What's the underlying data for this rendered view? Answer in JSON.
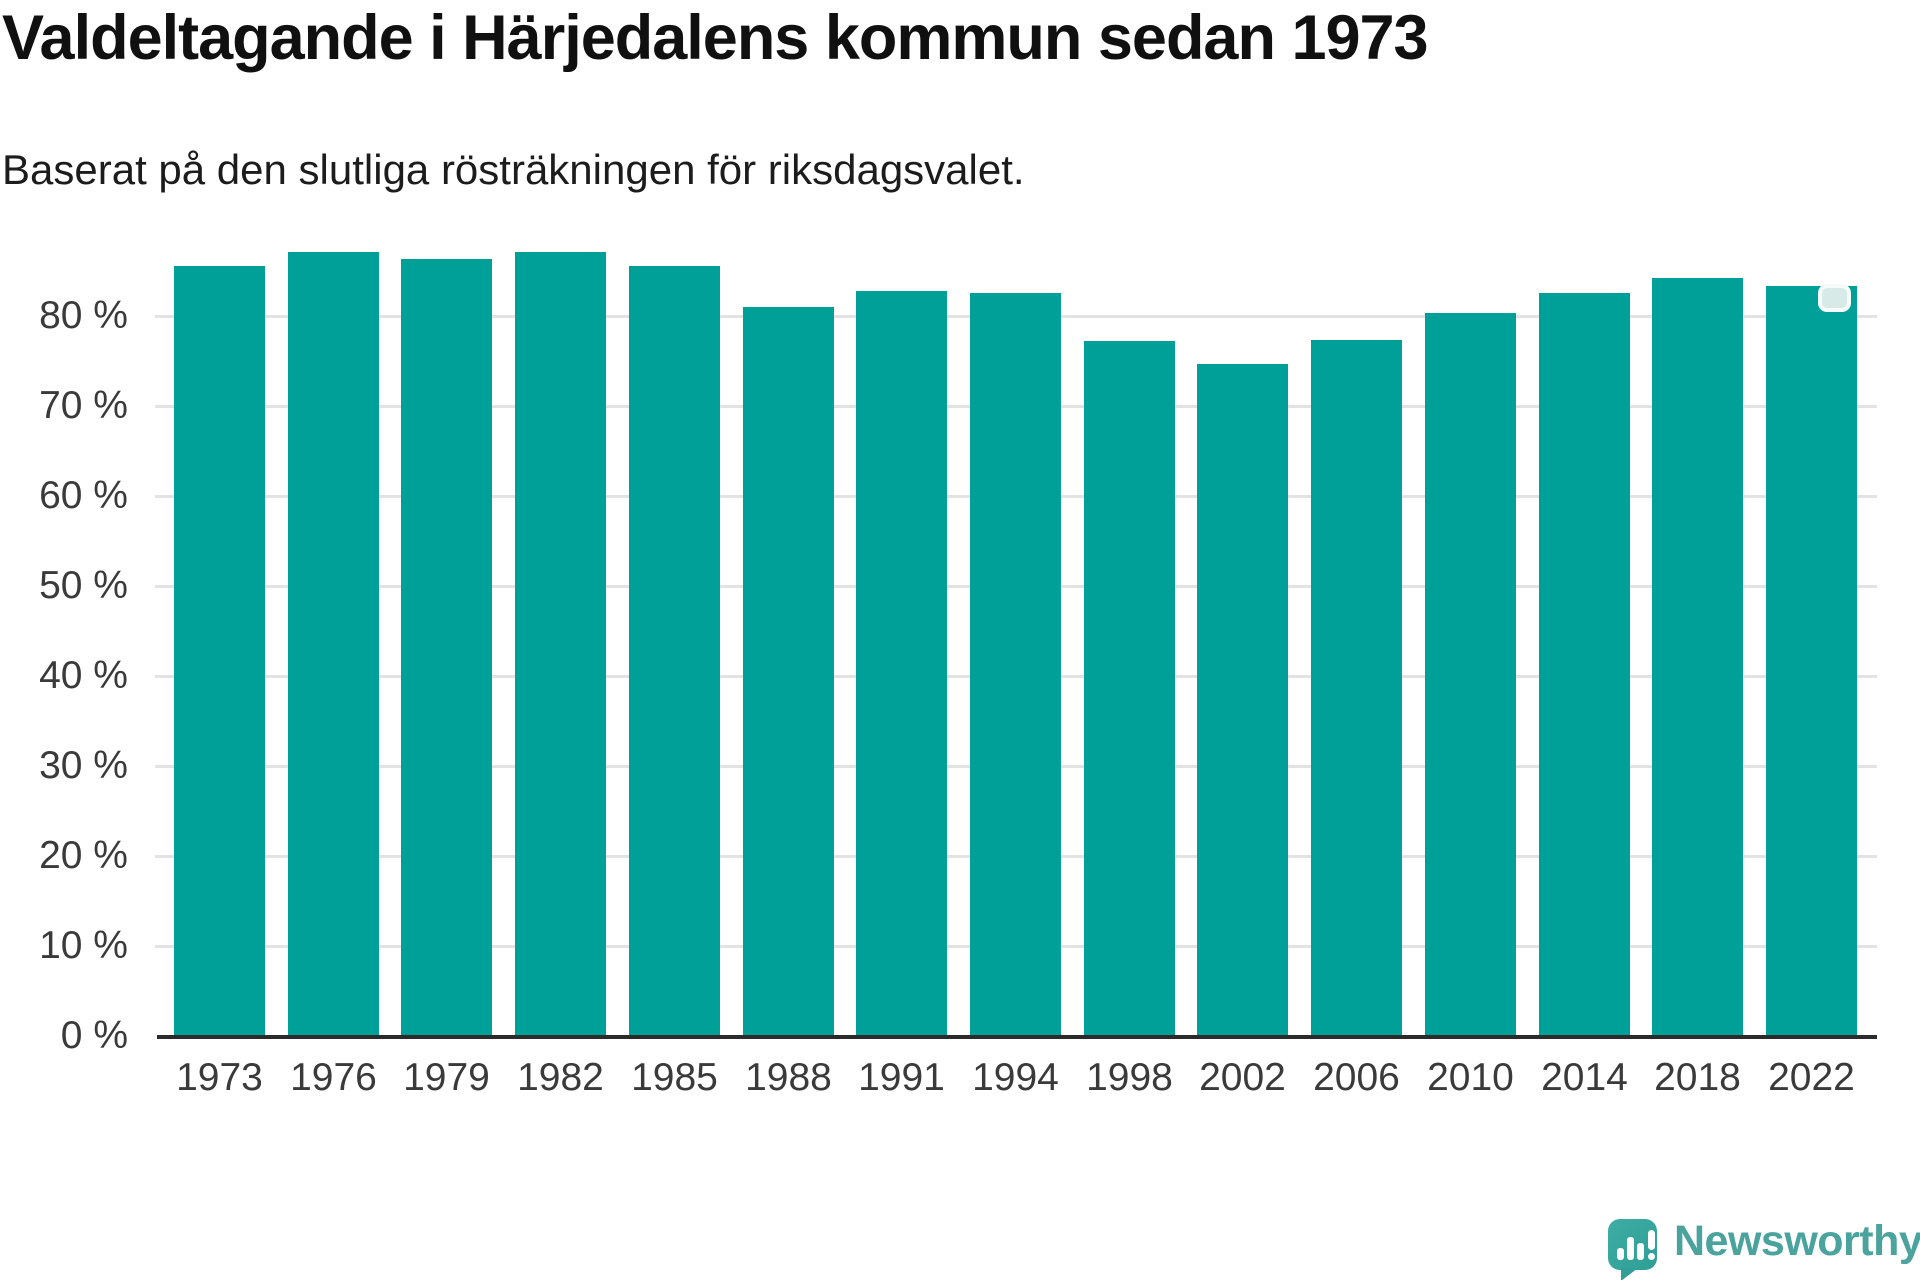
{
  "header": {
    "title": "Valdeltagande i Härjedalens kommun sedan 1973",
    "subtitle": "Baserat på den slutliga rösträkningen för riksdagsvalet."
  },
  "chart_data": {
    "type": "bar",
    "title": "Valdeltagande i Härjedalens kommun sedan 1973",
    "subtitle": "Baserat på den slutliga rösträkningen för riksdagsvalet.",
    "unit": "%",
    "categories": [
      "1973",
      "1976",
      "1979",
      "1982",
      "1985",
      "1988",
      "1991",
      "1994",
      "1998",
      "2002",
      "2006",
      "2010",
      "2014",
      "2018",
      "2022"
    ],
    "values": [
      85.6,
      87.1,
      86.3,
      87.1,
      85.5,
      81.0,
      82.8,
      82.6,
      77.2,
      74.7,
      77.3,
      80.3,
      82.6,
      84.2,
      83.3
    ],
    "ylim": [
      0,
      90
    ],
    "yticks": [
      0,
      10,
      20,
      30,
      40,
      50,
      60,
      70,
      80
    ],
    "ytick_label_format": "{value} %",
    "xlabel": "",
    "ylabel": "",
    "grid": true,
    "legend": "none",
    "bar_color": "#00a099",
    "highlight": {
      "category": "2022",
      "marker": "rounded-square-on-bar-top"
    }
  },
  "branding": {
    "logo_text": "Newsworthy",
    "logo_icon": "newsworthy-speech-bubble-barchart-icon",
    "logo_color": "#4aa39c"
  },
  "colors": {
    "bar": "#00a099",
    "axis": "#2b2b2b",
    "grid": "#e3e3e3",
    "tick_text": "#3a3a3a",
    "title_text": "#101010",
    "marker_fill": "#d7eae7",
    "marker_border": "#f6fbfa",
    "background": "#ffffff"
  }
}
